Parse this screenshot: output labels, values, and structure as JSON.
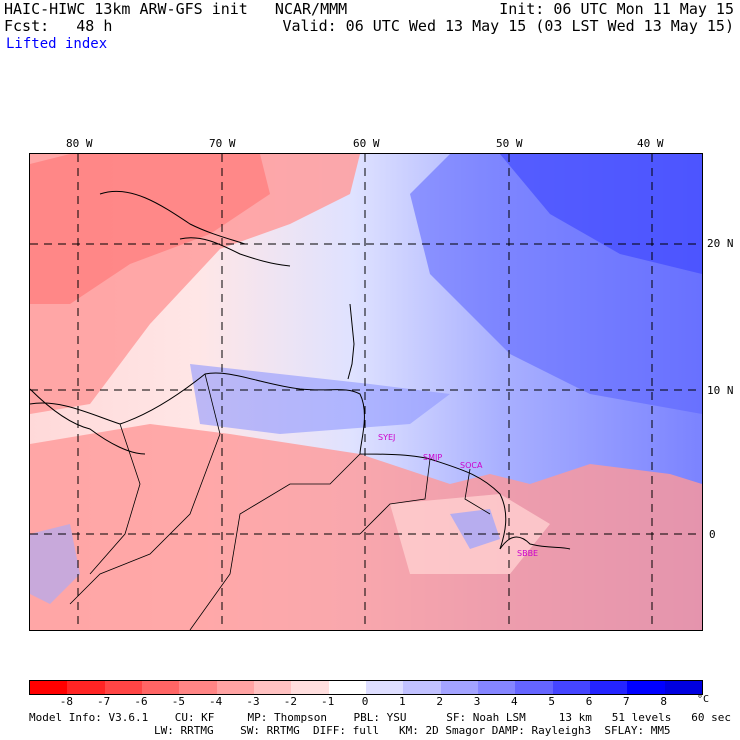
{
  "header": {
    "model_line": "HAIC-HIWC 13km ARW-GFS init   NCAR/MMM",
    "fcst_line": "Fcst:   48 h",
    "init_line": "Init: 06 UTC Mon 11 May 15",
    "valid_line": "Valid: 06 UTC Wed 13 May 15 (03 LST Wed 13 May 15)",
    "field": "Lifted index"
  },
  "map": {
    "lon_labels": [
      "80 W",
      "70 W",
      "60 W",
      "50 W",
      "40 W"
    ],
    "lat_labels": [
      "20 N",
      "10 N",
      "0"
    ],
    "stations": [
      "SYEJ",
      "SMJP",
      "SOCA",
      "SBBE"
    ]
  },
  "colorbar": {
    "ticks": [
      "-8",
      "-7",
      "-6",
      "-5",
      "-4",
      "-3",
      "-2",
      "-1",
      "0",
      "1",
      "2",
      "3",
      "4",
      "5",
      "6",
      "7",
      "8"
    ],
    "unit": "°C",
    "colors": [
      "#ff0000",
      "#ff2424",
      "#ff4545",
      "#ff6565",
      "#ff8585",
      "#ffa3a3",
      "#ffc1c1",
      "#ffdede",
      "#ffffff",
      "#dedeff",
      "#c1c1ff",
      "#a3a3ff",
      "#8585ff",
      "#6565ff",
      "#4545ff",
      "#2424ff",
      "#0000ff",
      "#0000e0"
    ]
  },
  "model_info": {
    "line1": "Model Info: V3.6.1    CU: KF     MP: Thompson    PBL: YSU      SF: Noah LSM     13 km   51 levels   60 sec",
    "line2": "LW: RRTMG    SW: RRTMG  DIFF: full   KM: 2D Smagor DAMP: Rayleigh3  SFLAY: MM5"
  }
}
